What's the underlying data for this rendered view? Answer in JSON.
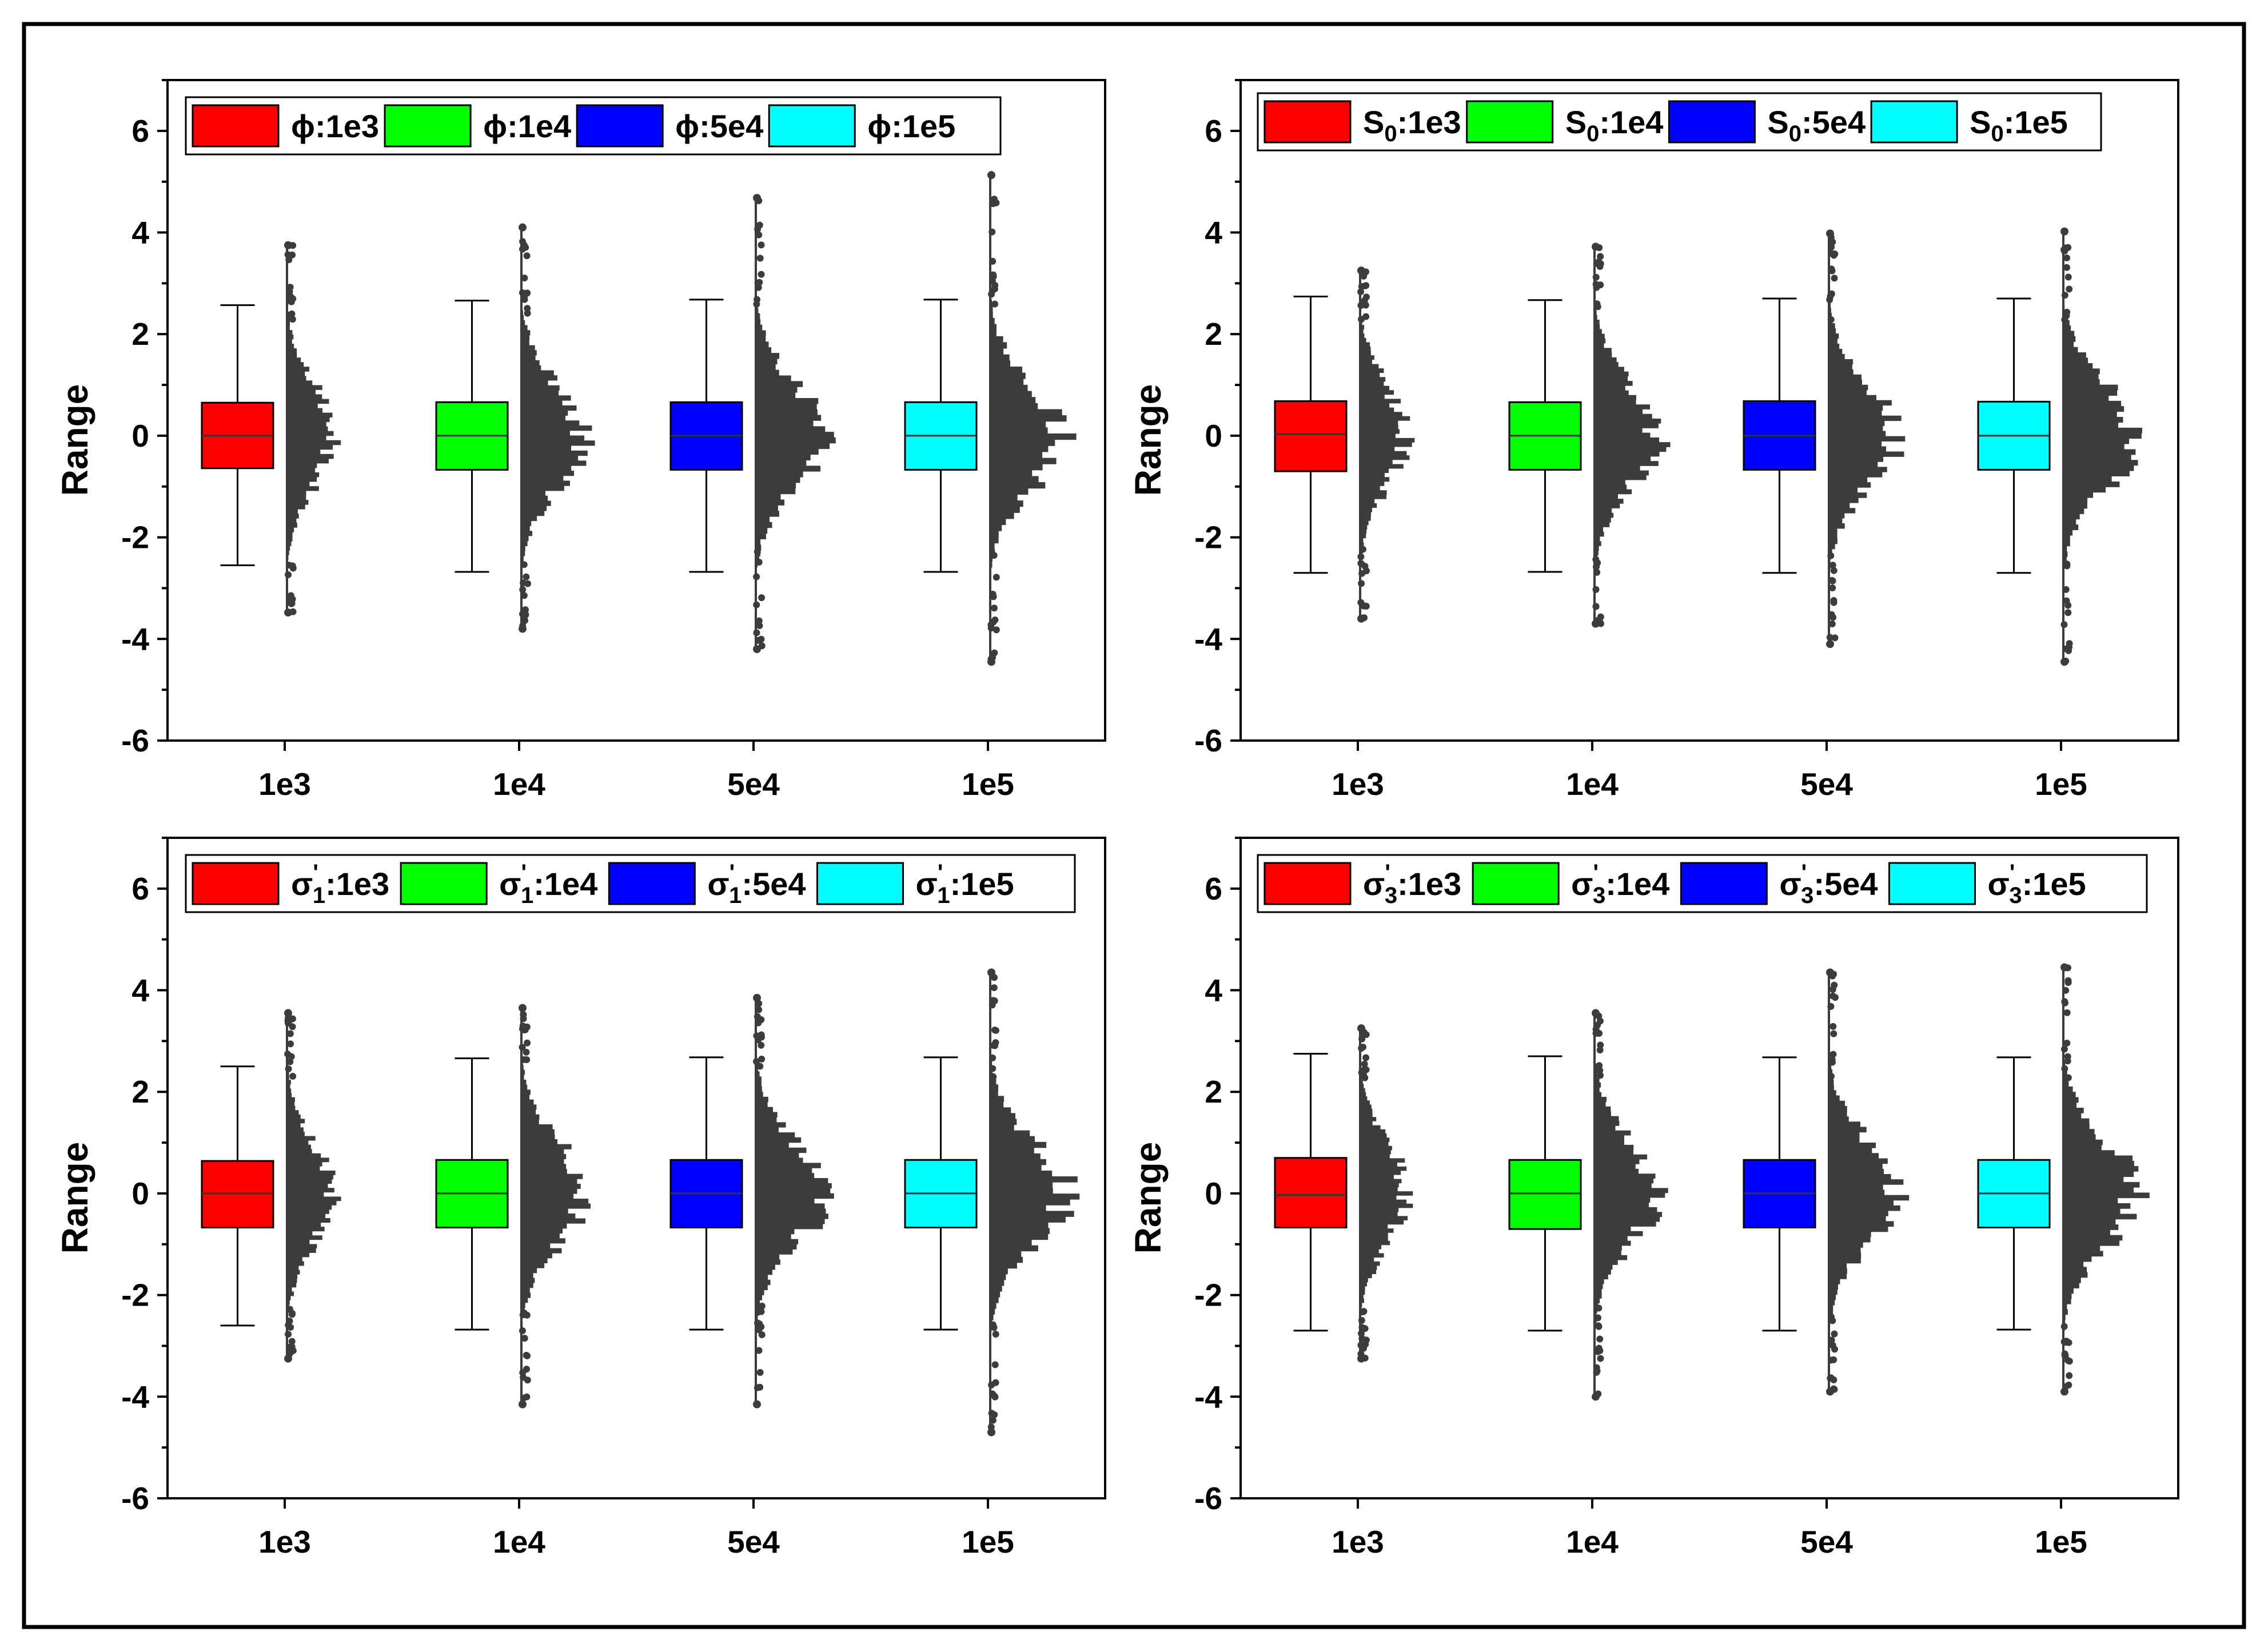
{
  "chart_data": [
    {
      "type": "box",
      "panel": "top-left",
      "ylabel": "Range",
      "ylim": [
        -6,
        7
      ],
      "yticks": [
        -6,
        -4,
        -2,
        0,
        2,
        4,
        6
      ],
      "categories": [
        "1e3",
        "1e4",
        "5e4",
        "1e5"
      ],
      "legend": {
        "position": "top-left",
        "entries": [
          {
            "symbol": "ϕ",
            "sub": "",
            "prime": false,
            "suffix": ":1e3",
            "color": "#ff0000"
          },
          {
            "symbol": "ϕ",
            "sub": "",
            "prime": false,
            "suffix": ":1e4",
            "color": "#00ff00"
          },
          {
            "symbol": "ϕ",
            "sub": "",
            "prime": false,
            "suffix": ":5e4",
            "color": "#0000ff"
          },
          {
            "symbol": "ϕ",
            "sub": "",
            "prime": false,
            "suffix": ":1e5",
            "color": "#00ffff"
          }
        ]
      },
      "series": [
        {
          "category": "1e3",
          "color": "#ff0000",
          "q1": -0.64,
          "median": 0.0,
          "q3": 0.65,
          "whisker_low": -2.55,
          "whisker_high": 2.57,
          "dist_min": -3.48,
          "dist_max": 3.75,
          "n": 1000
        },
        {
          "category": "1e4",
          "color": "#00ff00",
          "q1": -0.67,
          "median": 0.0,
          "q3": 0.66,
          "whisker_low": -2.68,
          "whisker_high": 2.66,
          "dist_min": -3.8,
          "dist_max": 4.1,
          "n": 10000
        },
        {
          "category": "5e4",
          "color": "#0000ff",
          "q1": -0.67,
          "median": 0.0,
          "q3": 0.66,
          "whisker_low": -2.68,
          "whisker_high": 2.68,
          "dist_min": -4.2,
          "dist_max": 4.68,
          "n": 50000
        },
        {
          "category": "1e5",
          "color": "#00ffff",
          "q1": -0.67,
          "median": 0.0,
          "q3": 0.66,
          "whisker_low": -2.68,
          "whisker_high": 2.68,
          "dist_min": -4.45,
          "dist_max": 5.13,
          "n": 100000
        }
      ]
    },
    {
      "type": "box",
      "panel": "top-right",
      "ylabel": "Range",
      "ylim": [
        -6,
        7
      ],
      "yticks": [
        -6,
        -4,
        -2,
        0,
        2,
        4,
        6
      ],
      "categories": [
        "1e3",
        "1e4",
        "5e4",
        "1e5"
      ],
      "legend": {
        "position": "top-left",
        "entries": [
          {
            "symbol": "S",
            "sub": "0",
            "prime": false,
            "suffix": ":1e3",
            "color": "#ff0000"
          },
          {
            "symbol": "S",
            "sub": "0",
            "prime": false,
            "suffix": ":1e4",
            "color": "#00ff00"
          },
          {
            "symbol": "S",
            "sub": "0",
            "prime": false,
            "suffix": ":5e4",
            "color": "#0000ff"
          },
          {
            "symbol": "S",
            "sub": "0",
            "prime": false,
            "suffix": ":1e5",
            "color": "#00ffff"
          }
        ]
      },
      "series": [
        {
          "category": "1e3",
          "color": "#ff0000",
          "q1": -0.7,
          "median": 0.03,
          "q3": 0.68,
          "whisker_low": -2.7,
          "whisker_high": 2.74,
          "dist_min": -3.6,
          "dist_max": 3.25,
          "n": 1000
        },
        {
          "category": "1e4",
          "color": "#00ff00",
          "q1": -0.67,
          "median": 0.0,
          "q3": 0.66,
          "whisker_low": -2.68,
          "whisker_high": 2.67,
          "dist_min": -3.7,
          "dist_max": 3.72,
          "n": 10000
        },
        {
          "category": "5e4",
          "color": "#0000ff",
          "q1": -0.67,
          "median": 0.0,
          "q3": 0.68,
          "whisker_low": -2.7,
          "whisker_high": 2.7,
          "dist_min": -4.1,
          "dist_max": 3.98,
          "n": 50000
        },
        {
          "category": "1e5",
          "color": "#00ffff",
          "q1": -0.67,
          "median": 0.0,
          "q3": 0.67,
          "whisker_low": -2.7,
          "whisker_high": 2.7,
          "dist_min": -4.45,
          "dist_max": 4.02,
          "n": 100000
        }
      ]
    },
    {
      "type": "box",
      "panel": "bottom-left",
      "ylabel": "Range",
      "ylim": [
        -6,
        7
      ],
      "yticks": [
        -6,
        -4,
        -2,
        0,
        2,
        4,
        6
      ],
      "categories": [
        "1e3",
        "1e4",
        "5e4",
        "1e5"
      ],
      "legend": {
        "position": "top-left",
        "entries": [
          {
            "symbol": "σ",
            "sub": "1",
            "prime": true,
            "suffix": ":1e3",
            "color": "#ff0000"
          },
          {
            "symbol": "σ",
            "sub": "1",
            "prime": true,
            "suffix": ":1e4",
            "color": "#00ff00"
          },
          {
            "symbol": "σ",
            "sub": "1",
            "prime": true,
            "suffix": ":5e4",
            "color": "#0000ff"
          },
          {
            "symbol": "σ",
            "sub": "1",
            "prime": true,
            "suffix": ":1e5",
            "color": "#00ffff"
          }
        ]
      },
      "series": [
        {
          "category": "1e3",
          "color": "#ff0000",
          "q1": -0.67,
          "median": 0.0,
          "q3": 0.64,
          "whisker_low": -2.6,
          "whisker_high": 2.5,
          "dist_min": -3.25,
          "dist_max": 3.55,
          "n": 1000
        },
        {
          "category": "1e4",
          "color": "#00ff00",
          "q1": -0.67,
          "median": 0.0,
          "q3": 0.66,
          "whisker_low": -2.68,
          "whisker_high": 2.66,
          "dist_min": -4.15,
          "dist_max": 3.65,
          "n": 10000
        },
        {
          "category": "5e4",
          "color": "#0000ff",
          "q1": -0.67,
          "median": 0.0,
          "q3": 0.66,
          "whisker_low": -2.68,
          "whisker_high": 2.68,
          "dist_min": -4.15,
          "dist_max": 3.85,
          "n": 50000
        },
        {
          "category": "1e5",
          "color": "#00ffff",
          "q1": -0.67,
          "median": 0.0,
          "q3": 0.66,
          "whisker_low": -2.68,
          "whisker_high": 2.68,
          "dist_min": -4.7,
          "dist_max": 4.35,
          "n": 100000
        }
      ]
    },
    {
      "type": "box",
      "panel": "bottom-right",
      "ylabel": "Range",
      "ylim": [
        -6,
        7
      ],
      "yticks": [
        -6,
        -4,
        -2,
        0,
        2,
        4,
        6
      ],
      "categories": [
        "1e3",
        "1e4",
        "5e4",
        "1e5"
      ],
      "legend": {
        "position": "top-left",
        "entries": [
          {
            "symbol": "σ",
            "sub": "3",
            "prime": true,
            "suffix": ":1e3",
            "color": "#ff0000"
          },
          {
            "symbol": "σ",
            "sub": "3",
            "prime": true,
            "suffix": ":1e4",
            "color": "#00ff00"
          },
          {
            "symbol": "σ",
            "sub": "3",
            "prime": true,
            "suffix": ":5e4",
            "color": "#0000ff"
          },
          {
            "symbol": "σ",
            "sub": "3",
            "prime": true,
            "suffix": ":1e5",
            "color": "#00ffff"
          }
        ]
      },
      "series": [
        {
          "category": "1e3",
          "color": "#ff0000",
          "q1": -0.67,
          "median": -0.03,
          "q3": 0.7,
          "whisker_low": -2.7,
          "whisker_high": 2.75,
          "dist_min": -3.25,
          "dist_max": 3.25,
          "n": 1000
        },
        {
          "category": "1e4",
          "color": "#00ff00",
          "q1": -0.7,
          "median": 0.0,
          "q3": 0.66,
          "whisker_low": -2.7,
          "whisker_high": 2.7,
          "dist_min": -4.0,
          "dist_max": 3.55,
          "n": 10000
        },
        {
          "category": "5e4",
          "color": "#0000ff",
          "q1": -0.67,
          "median": 0.0,
          "q3": 0.66,
          "whisker_low": -2.7,
          "whisker_high": 2.68,
          "dist_min": -3.9,
          "dist_max": 4.35,
          "n": 50000
        },
        {
          "category": "1e5",
          "color": "#00ffff",
          "q1": -0.67,
          "median": 0.0,
          "q3": 0.66,
          "whisker_low": -2.68,
          "whisker_high": 2.68,
          "dist_min": -3.9,
          "dist_max": 4.45,
          "n": 100000
        }
      ]
    }
  ]
}
